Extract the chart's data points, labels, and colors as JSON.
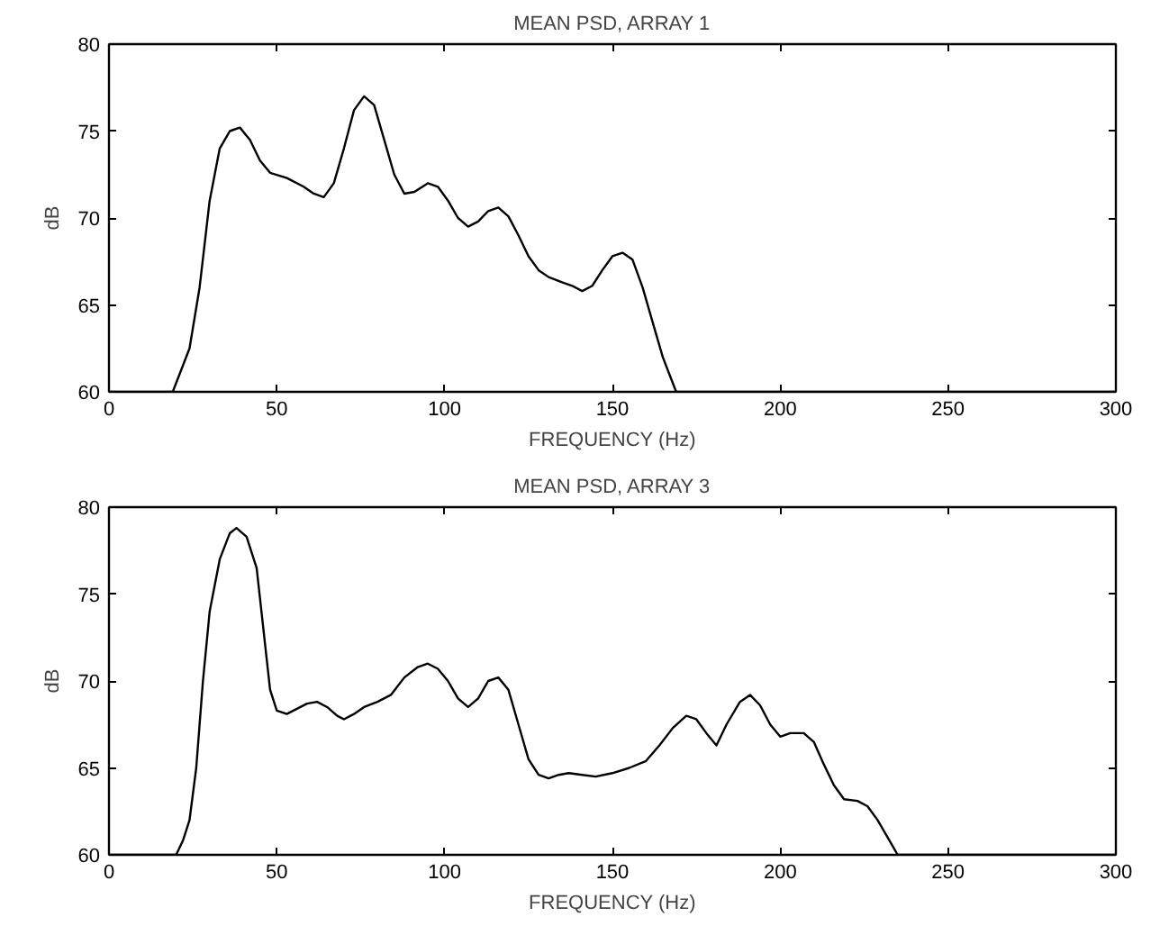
{
  "chart_data": [
    {
      "type": "line",
      "title": "MEAN PSD, ARRAY 1",
      "xlabel": "FREQUENCY (Hz)",
      "ylabel": "dB",
      "xlim": [
        0,
        300
      ],
      "ylim": [
        60,
        80
      ],
      "xticks": [
        0,
        50,
        100,
        150,
        200,
        250,
        300
      ],
      "yticks": [
        60,
        65,
        70,
        75,
        80
      ],
      "series": [
        {
          "color": "#000000",
          "x": [
            0,
            19,
            21,
            24,
            27,
            30,
            33,
            36,
            39,
            42,
            45,
            48,
            53,
            58,
            61,
            64,
            67,
            70,
            73,
            76,
            79,
            82,
            85,
            88,
            91,
            95,
            98,
            101,
            104,
            107,
            110,
            113,
            116,
            119,
            122,
            125,
            128,
            131,
            135,
            138,
            141,
            144,
            147,
            150,
            153,
            156,
            159,
            162,
            165,
            167,
            169,
            300
          ],
          "values": [
            60,
            60,
            61,
            62.5,
            66,
            71,
            74,
            75,
            75.2,
            74.5,
            73.3,
            72.6,
            72.3,
            71.8,
            71.4,
            71.2,
            72,
            74,
            76.2,
            77,
            76.5,
            74.5,
            72.5,
            71.4,
            71.5,
            72,
            71.8,
            71,
            70,
            69.5,
            69.8,
            70.4,
            70.6,
            70.1,
            69,
            67.8,
            67,
            66.6,
            66.3,
            66.1,
            65.8,
            66.1,
            67,
            67.8,
            68,
            67.6,
            66,
            64,
            62,
            61,
            60,
            60
          ]
        }
      ]
    },
    {
      "type": "line",
      "title": "MEAN PSD, ARRAY 3",
      "xlabel": "FREQUENCY (Hz)",
      "ylabel": "dB",
      "xlim": [
        0,
        300
      ],
      "ylim": [
        60,
        80
      ],
      "xticks": [
        0,
        50,
        100,
        150,
        200,
        250,
        300
      ],
      "yticks": [
        60,
        65,
        70,
        75,
        80
      ],
      "series": [
        {
          "color": "#000000",
          "x": [
            0,
            20,
            22,
            24,
            26,
            28,
            30,
            33,
            36,
            38,
            41,
            44,
            46,
            48,
            50,
            53,
            56,
            59,
            62,
            65,
            68,
            70,
            73,
            76,
            80,
            84,
            88,
            92,
            95,
            98,
            101,
            104,
            107,
            110,
            113,
            116,
            119,
            122,
            125,
            128,
            131,
            134,
            137,
            141,
            145,
            150,
            155,
            160,
            164,
            168,
            172,
            175,
            178,
            181,
            184,
            188,
            191,
            194,
            197,
            200,
            203,
            207,
            210,
            213,
            216,
            219,
            223,
            226,
            229,
            232,
            235,
            300
          ],
          "values": [
            60,
            60,
            60.8,
            62,
            65,
            70,
            74,
            77,
            78.5,
            78.8,
            78.3,
            76.5,
            73,
            69.5,
            68.3,
            68.1,
            68.4,
            68.7,
            68.8,
            68.5,
            68,
            67.8,
            68.1,
            68.5,
            68.8,
            69.2,
            70.2,
            70.8,
            71,
            70.7,
            70,
            69,
            68.5,
            69,
            70,
            70.2,
            69.5,
            67.5,
            65.5,
            64.6,
            64.4,
            64.6,
            64.7,
            64.6,
            64.5,
            64.7,
            65,
            65.4,
            66.3,
            67.3,
            68,
            67.8,
            67,
            66.3,
            67.5,
            68.8,
            69.2,
            68.6,
            67.5,
            66.8,
            67,
            67,
            66.5,
            65.2,
            64,
            63.2,
            63.1,
            62.8,
            62,
            61,
            60,
            60
          ]
        }
      ]
    }
  ]
}
